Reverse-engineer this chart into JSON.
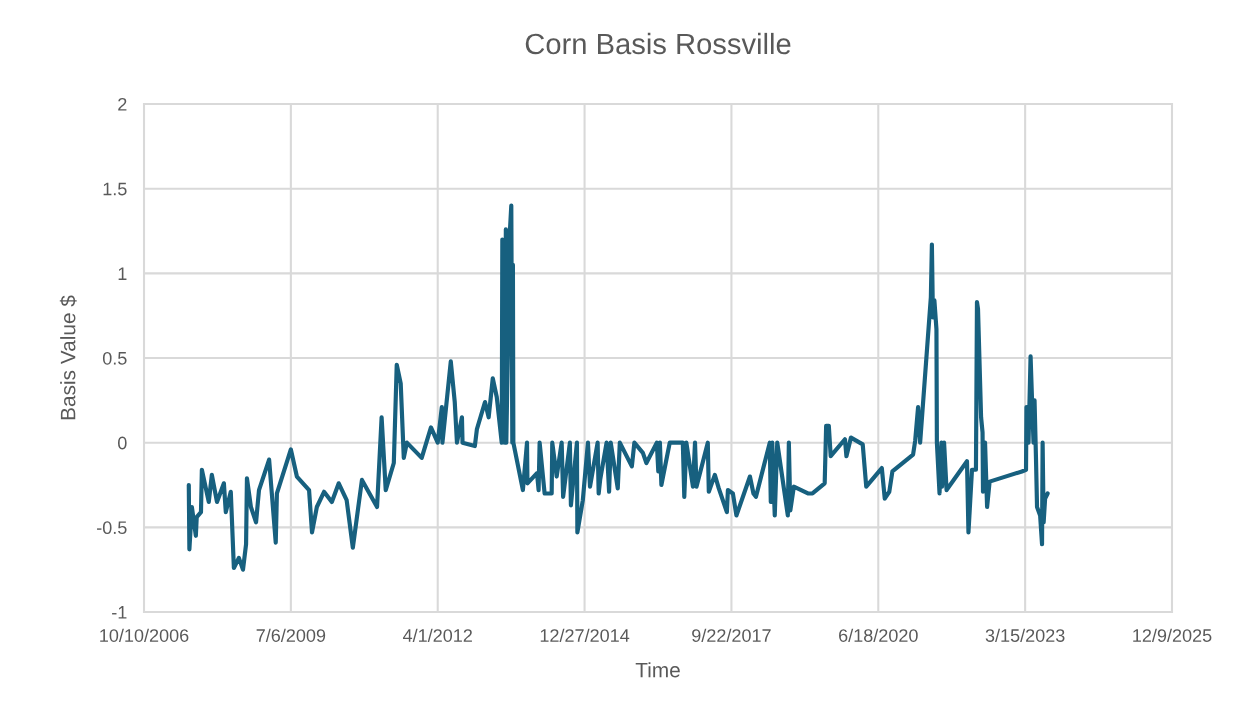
{
  "chart_data": {
    "type": "line",
    "title": "Corn Basis Rossville",
    "xlabel": "Time",
    "ylabel": "Basis Value $",
    "xlim": [
      "2006-10-10",
      "2025-12-09"
    ],
    "xticks": [
      {
        "value": "2006-10-10",
        "label": "10/10/2006"
      },
      {
        "value": "2009-07-06",
        "label": "7/6/2009"
      },
      {
        "value": "2012-04-01",
        "label": "4/1/2012"
      },
      {
        "value": "2014-12-27",
        "label": "12/27/2014"
      },
      {
        "value": "2017-09-22",
        "label": "9/22/2017"
      },
      {
        "value": "2020-06-18",
        "label": "6/18/2020"
      },
      {
        "value": "2023-03-15",
        "label": "3/15/2023"
      },
      {
        "value": "2025-12-09",
        "label": "12/9/2025"
      }
    ],
    "ylim": [
      -1,
      2
    ],
    "yticks": [
      -1,
      -0.5,
      0,
      0.5,
      1,
      1.5,
      2
    ],
    "grid": true,
    "marker": "none",
    "line_style": "solid",
    "series": [
      {
        "color": "#17607f",
        "x": [
          "2007-08-11",
          "2007-08-15",
          "2007-09-01",
          "2007-09-28",
          "2007-10-04",
          "2007-11-02",
          "2007-11-08",
          "2007-12-25",
          "2008-01-15",
          "2008-02-19",
          "2008-04-06",
          "2008-04-19",
          "2008-05-23",
          "2008-06-13",
          "2008-07-17",
          "2008-08-14",
          "2008-09-04",
          "2008-09-10",
          "2008-10-07",
          "2008-11-11",
          "2008-12-01",
          "2009-02-08",
          "2009-03-25",
          "2009-04-02",
          "2009-07-06",
          "2009-08-16",
          "2009-11-07",
          "2009-11-27",
          "2009-12-30",
          "2010-02-17",
          "2010-04-11",
          "2010-05-28",
          "2010-07-21",
          "2010-09-01",
          "2010-11-02",
          "2011-02-13",
          "2011-03-16",
          "2011-04-13",
          "2011-06-07",
          "2011-06-27",
          "2011-07-24",
          "2011-08-14",
          "2011-09-04",
          "2011-12-14",
          "2012-02-15",
          "2012-04-01",
          "2012-04-29",
          "2012-05-03",
          "2012-06-29",
          "2012-07-26",
          "2012-08-10",
          "2012-09-13",
          "2012-09-17",
          "2012-12-10",
          "2012-12-24",
          "2013-02-17",
          "2013-03-14",
          "2013-04-11",
          "2013-05-08",
          "2013-06-11",
          "2013-06-15",
          "2013-07-02",
          "2013-07-09",
          "2013-07-12",
          "2013-08-05",
          "2013-08-15",
          "2013-08-22",
          "2013-08-26",
          "2013-08-29",
          "2013-11-02",
          "2013-11-30",
          "2013-12-03",
          "2014-02-06",
          "2014-02-17",
          "2014-02-24",
          "2014-03-30",
          "2014-05-17",
          "2014-05-21",
          "2014-06-20",
          "2014-07-24",
          "2014-08-03",
          "2014-09-18",
          "2014-09-25",
          "2014-11-05",
          "2014-11-08",
          "2014-12-15",
          "2015-01-19",
          "2015-02-02",
          "2015-03-26",
          "2015-04-02",
          "2015-04-12",
          "2015-05-26",
          "2015-06-12",
          "2015-06-23",
          "2015-08-10",
          "2015-08-24",
          "2015-11-14",
          "2015-12-01",
          "2016-01-28",
          "2016-02-21",
          "2016-05-02",
          "2016-05-12",
          "2016-05-23",
          "2016-06-02",
          "2016-07-29",
          "2016-10-26",
          "2016-11-05",
          "2016-11-19",
          "2017-01-03",
          "2017-01-17",
          "2017-01-27",
          "2017-04-14",
          "2017-04-21",
          "2017-06-01",
          "2017-06-28",
          "2017-08-22",
          "2017-08-29",
          "2017-10-02",
          "2017-10-26",
          "2018-01-26",
          "2018-02-19",
          "2018-03-08",
          "2018-06-10",
          "2018-06-17",
          "2018-06-27",
          "2018-07-14",
          "2018-07-31",
          "2018-10-11",
          "2018-10-18",
          "2018-10-28",
          "2018-11-21",
          "2019-02-25",
          "2019-03-28",
          "2019-06-19",
          "2019-06-29",
          "2019-07-17",
          "2019-07-30",
          "2019-11-04",
          "2019-11-14",
          "2019-12-15",
          "2020-03-04",
          "2020-03-28",
          "2020-07-12",
          "2020-08-01",
          "2020-09-01",
          "2020-09-22",
          "2021-02-10",
          "2021-02-24",
          "2021-03-16",
          "2021-03-30",
          "2021-06-11",
          "2021-06-18",
          "2021-06-25",
          "2021-07-05",
          "2021-07-19",
          "2021-07-22",
          "2021-08-09",
          "2021-08-22",
          "2021-08-26",
          "2021-09-09",
          "2021-09-26",
          "2022-02-12",
          "2022-02-22",
          "2022-03-18",
          "2022-04-14",
          "2022-04-21",
          "2022-04-28",
          "2022-05-19",
          "2022-05-29",
          "2022-06-01",
          "2022-06-15",
          "2022-06-29",
          "2022-07-16",
          "2023-02-21",
          "2023-03-21",
          "2023-03-24",
          "2023-04-07",
          "2023-04-21",
          "2023-05-01",
          "2023-05-11",
          "2023-05-18",
          "2023-05-28",
          "2023-06-04",
          "2023-06-25",
          "2023-07-08",
          "2023-07-12",
          "2023-07-19",
          "2023-07-29",
          "2023-08-15"
        ],
        "values": [
          -0.25,
          -0.63,
          -0.38,
          -0.55,
          -0.44,
          -0.41,
          -0.16,
          -0.35,
          -0.19,
          -0.35,
          -0.24,
          -0.41,
          -0.29,
          -0.74,
          -0.68,
          -0.75,
          -0.6,
          -0.21,
          -0.38,
          -0.47,
          -0.28,
          -0.1,
          -0.59,
          -0.3,
          -0.04,
          -0.2,
          -0.28,
          -0.53,
          -0.38,
          -0.29,
          -0.35,
          -0.24,
          -0.34,
          -0.62,
          -0.22,
          -0.38,
          0.15,
          -0.28,
          -0.12,
          0.46,
          0.35,
          -0.09,
          0.0,
          -0.09,
          0.09,
          0.0,
          0.21,
          0.0,
          0.48,
          0.24,
          0.0,
          0.15,
          0.0,
          -0.02,
          0.08,
          0.24,
          0.15,
          0.38,
          0.27,
          0.0,
          1.2,
          0.0,
          1.26,
          0.0,
          1.24,
          1.4,
          0.0,
          1.05,
          0.0,
          -0.28,
          0.0,
          -0.24,
          -0.18,
          -0.28,
          0.0,
          -0.3,
          -0.3,
          0.0,
          -0.2,
          0.0,
          -0.32,
          0.0,
          -0.37,
          0.0,
          -0.53,
          -0.34,
          0.0,
          -0.26,
          0.0,
          -0.3,
          -0.22,
          0.0,
          -0.29,
          0.0,
          -0.27,
          0.0,
          -0.14,
          0.0,
          -0.06,
          -0.12,
          0.0,
          -0.17,
          0.0,
          -0.25,
          0.0,
          0.0,
          -0.32,
          0.0,
          -0.26,
          0.0,
          -0.26,
          0.0,
          -0.29,
          -0.19,
          -0.27,
          -0.41,
          -0.28,
          -0.3,
          -0.43,
          -0.2,
          -0.3,
          -0.32,
          0.0,
          -0.35,
          0.0,
          -0.43,
          0.0,
          -0.43,
          0.0,
          -0.4,
          -0.26,
          -0.3,
          -0.3,
          -0.24,
          0.1,
          0.1,
          -0.08,
          0.02,
          -0.08,
          0.03,
          -0.01,
          -0.26,
          -0.15,
          -0.33,
          -0.29,
          -0.17,
          -0.07,
          0.01,
          0.21,
          0.0,
          0.86,
          1.17,
          0.74,
          0.84,
          0.67,
          0.0,
          -0.3,
          0.0,
          -0.26,
          0.0,
          -0.28,
          -0.11,
          -0.53,
          -0.16,
          -0.16,
          0.83,
          0.79,
          0.15,
          0.06,
          -0.29,
          0.0,
          -0.38,
          -0.23,
          -0.17,
          -0.16,
          0.21,
          0.0,
          0.51,
          0.25,
          0.0,
          0.25,
          -0.1,
          -0.38,
          -0.43,
          -0.6,
          0.0,
          -0.47,
          -0.33,
          -0.3
        ]
      }
    ]
  }
}
